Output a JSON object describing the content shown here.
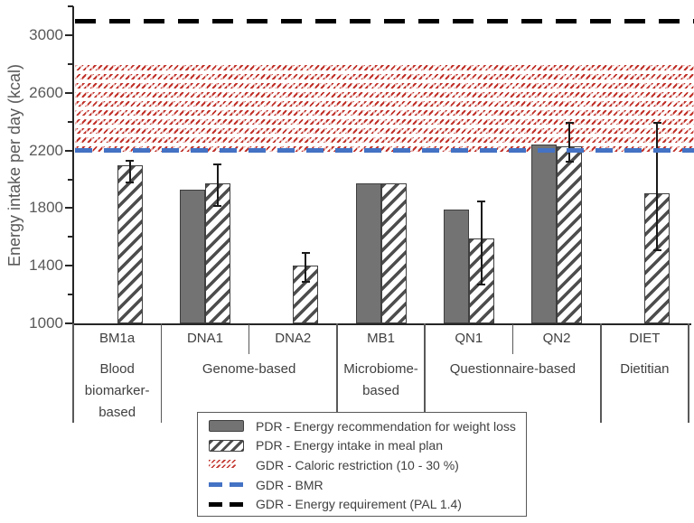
{
  "chart_data": {
    "type": "bar",
    "title": "",
    "y_axis": {
      "label": "Energy intake per day (kcal)",
      "range": [
        1000,
        3200
      ],
      "labeled_ticks": [
        1000,
        1400,
        1800,
        2200,
        2600,
        3000
      ],
      "minor_ticks": [
        1200,
        1600,
        2000,
        2400,
        2800,
        3200
      ]
    },
    "categories": [
      "BM1a",
      "DNA1",
      "DNA2",
      "MB1",
      "QN1",
      "QN2",
      "DIET"
    ],
    "groups": [
      {
        "label": "Blood biomarker-based",
        "span": 1
      },
      {
        "label": "Genome-based",
        "span": 2
      },
      {
        "label": "Microbiome-based",
        "span": 1
      },
      {
        "label": "Questionnaire-based",
        "span": 2
      },
      {
        "label": "Dietitian",
        "span": 1
      }
    ],
    "series": [
      {
        "name": "PDR - Energy recommendation for weight loss",
        "style": "solid",
        "values": [
          null,
          1930,
          null,
          1970,
          1790,
          2240,
          null
        ]
      },
      {
        "name": "PDR - Energy intake in meal plan",
        "style": "hatched",
        "values": [
          2100,
          1970,
          1400,
          1970,
          1590,
          2230,
          1900
        ],
        "error_low": [
          1980,
          1815,
          1290,
          null,
          1270,
          2125,
          1505
        ],
        "error_high": [
          2130,
          2105,
          1490,
          null,
          1845,
          2390,
          2390
        ]
      }
    ],
    "reference_band": {
      "name": "GDR - Caloric restriction (10 - 30 %)",
      "from": 2170,
      "to": 2790,
      "color": "#c03028"
    },
    "reference_lines": [
      {
        "name": "GDR - BMR",
        "value": 2200,
        "color": "#4472c4",
        "dash": [
          19,
          13
        ]
      },
      {
        "name": "GDR - Energy requirement (PAL 1.4)",
        "value": 3100,
        "color": "#000000",
        "dash": [
          23,
          15
        ]
      }
    ],
    "legend": [
      {
        "label": "PDR - Energy recommendation for weight loss",
        "swatch": "solid"
      },
      {
        "label": "PDR - Energy intake in meal plan",
        "swatch": "hatched"
      },
      {
        "label": "GDR - Caloric restriction (10 - 30 %)",
        "swatch": "red-hatch"
      },
      {
        "label": "GDR - BMR",
        "swatch": "blue-dash"
      },
      {
        "label": "GDR - Energy requirement (PAL 1.4)",
        "swatch": "black-dash"
      }
    ],
    "colors": {
      "bar_fill": "#737373",
      "bar_border": "#3f3f3f",
      "hatch": "#4d4d4d",
      "band_red": "#c03028",
      "bmr_blue": "#4472c4",
      "requirement_black": "#000000",
      "axis": "#262626",
      "text": "#595959"
    }
  }
}
